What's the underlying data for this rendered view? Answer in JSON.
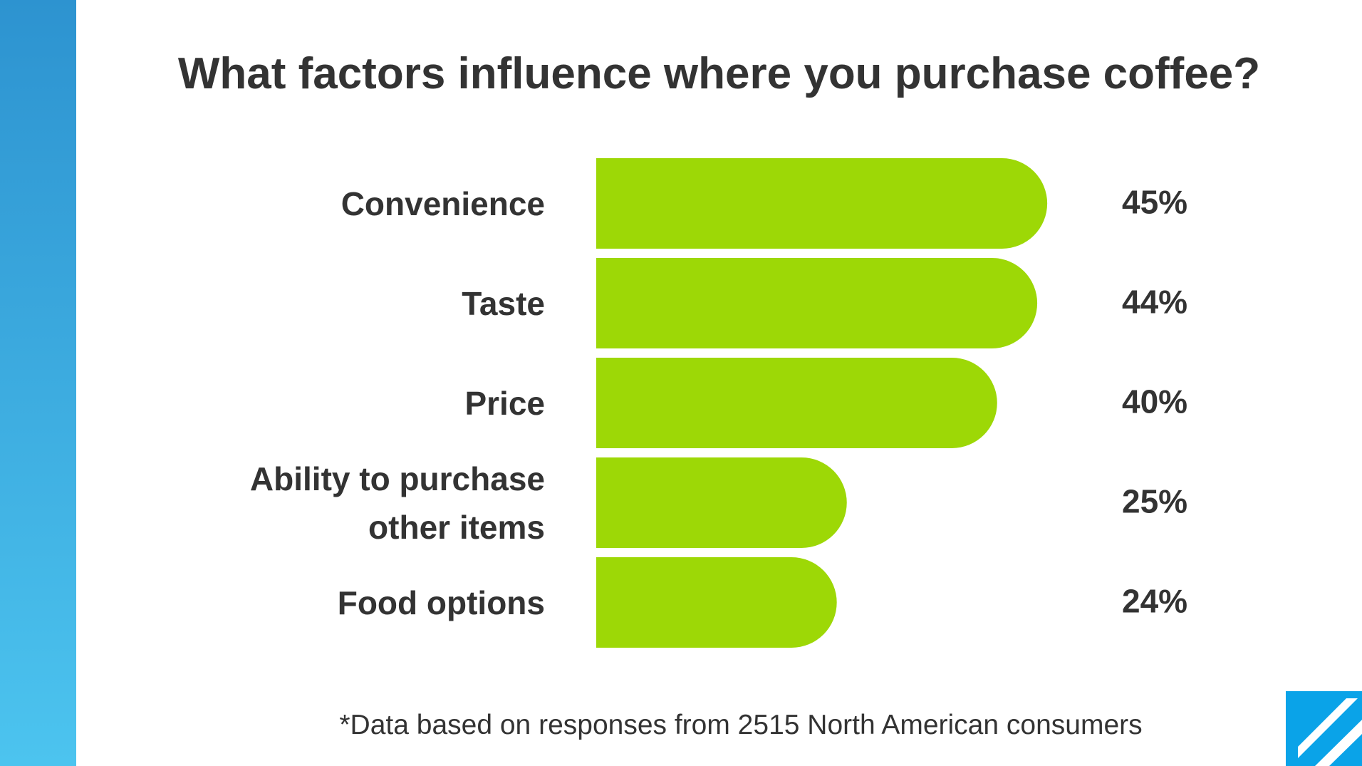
{
  "chart_data": {
    "type": "bar",
    "orientation": "horizontal",
    "title": "What factors influence where you purchase coffee?",
    "categories": [
      "Convenience",
      "Taste",
      "Price",
      "Ability to purchase other items",
      "Food options"
    ],
    "values": [
      45,
      44,
      40,
      25,
      24
    ],
    "value_labels": [
      "45%",
      "44%",
      "40%",
      "25%",
      "24%"
    ],
    "color": "#9dd806",
    "footnote": "*Data based on responses from 2515 North American consumers"
  }
}
